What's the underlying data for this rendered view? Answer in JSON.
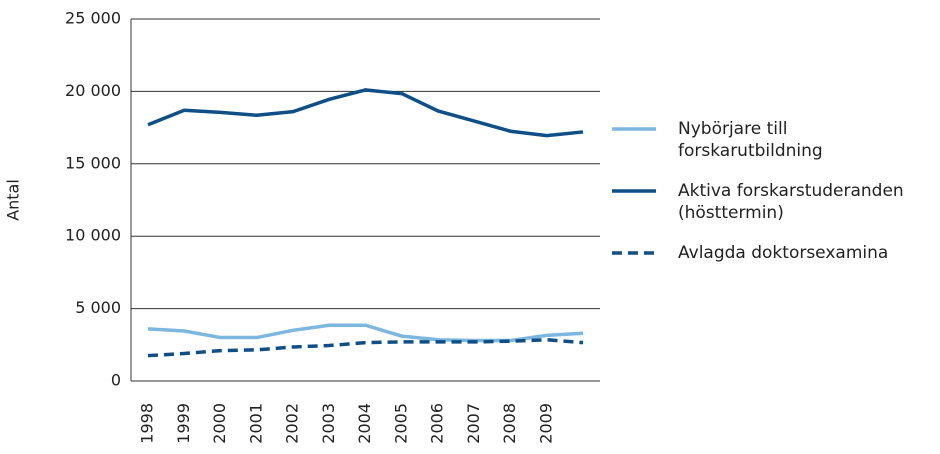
{
  "chart_data": {
    "type": "line",
    "y_label": "Antal",
    "categories": [
      "1998",
      "1999",
      "2000",
      "2001",
      "2002",
      "2003",
      "2004",
      "2005",
      "2006",
      "2007",
      "2008",
      "2009",
      null
    ],
    "series": [
      {
        "name": "Nybörjare till forskarutbildning",
        "color": "#7bb7df",
        "dashed": false,
        "values": [
          3600,
          3450,
          3000,
          3000,
          3500,
          3850,
          3850,
          3100,
          2850,
          2800,
          2800,
          3150,
          3300
        ]
      },
      {
        "name": "Aktiva forskarstuderanden (hösttermin)",
        "color": "#0d4f86",
        "dashed": false,
        "values": [
          17700,
          18700,
          18550,
          18350,
          18600,
          19450,
          20100,
          19850,
          18650,
          17950,
          17250,
          16950,
          17200
        ]
      },
      {
        "name": "Avlagda doktorsexamina",
        "color": "#0d4f86",
        "dashed": true,
        "values": [
          1750,
          1900,
          2100,
          2150,
          2350,
          2450,
          2650,
          2700,
          2700,
          2700,
          2750,
          2850,
          2650
        ]
      }
    ],
    "ylim": [
      0,
      25000
    ],
    "yticks": [
      0,
      {
        "value": 5000,
        "label": "5 000"
      },
      {
        "value": 10000,
        "label": "10 000"
      },
      {
        "value": 15000,
        "label": "15 000"
      },
      {
        "value": 20000,
        "label": "20 000"
      },
      {
        "value": 25000,
        "label": "25 000"
      }
    ],
    "grid": true
  }
}
